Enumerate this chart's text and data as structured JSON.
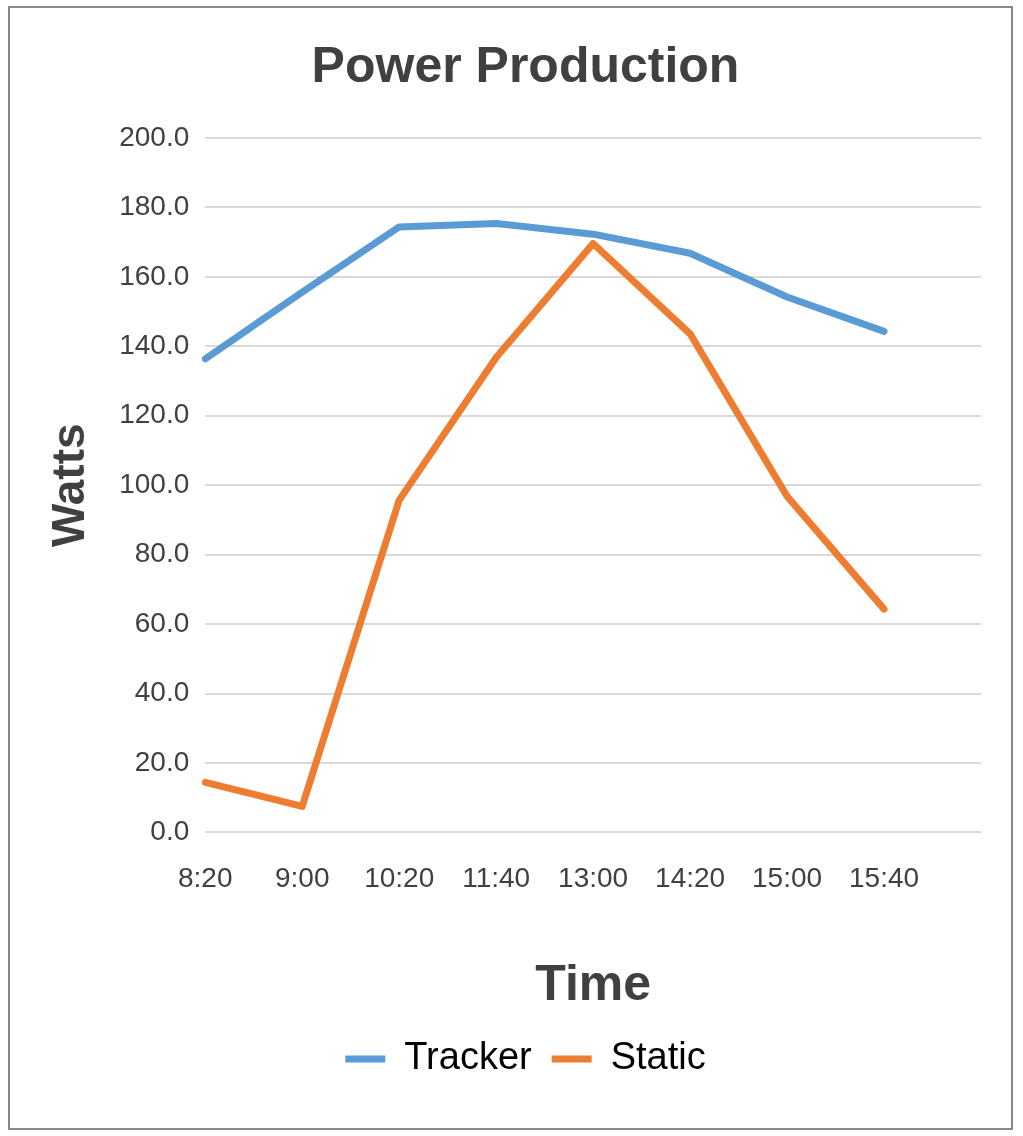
{
  "chart_data": {
    "type": "line",
    "title": "Power Production",
    "xlabel": "Time",
    "ylabel": "Watts",
    "categories": [
      "8:20",
      "9:00",
      "10:20",
      "11:40",
      "13:00",
      "14:20",
      "15:00",
      "15:40",
      null
    ],
    "series": [
      {
        "name": "Tracker",
        "color": "#5b9bd5",
        "values": [
          136.4,
          155.6,
          174.4,
          175.4,
          172.3,
          166.8,
          154.2,
          144.3,
          null
        ]
      },
      {
        "name": "Static",
        "color": "#ed7d31",
        "values": [
          14.4,
          7.5,
          95.7,
          136.8,
          169.6,
          143.6,
          96.8,
          64.3,
          null
        ]
      }
    ],
    "ylim": [
      0,
      200
    ],
    "yticks": [
      {
        "value": 0,
        "label": "0.0"
      },
      {
        "value": 20,
        "label": "20.0"
      },
      {
        "value": 40,
        "label": "40.0"
      },
      {
        "value": 60,
        "label": "60.0"
      },
      {
        "value": 80,
        "label": "80.0"
      },
      {
        "value": 100,
        "label": "100.0"
      },
      {
        "value": 120,
        "label": "120.0"
      },
      {
        "value": 140,
        "label": "140.0"
      },
      {
        "value": 160,
        "label": "160.0"
      },
      {
        "value": 180,
        "label": "180.0"
      },
      {
        "value": 200,
        "label": "200.0"
      }
    ],
    "grid": "y",
    "legend": "bottom",
    "marker": "none",
    "line_style": "solid"
  }
}
